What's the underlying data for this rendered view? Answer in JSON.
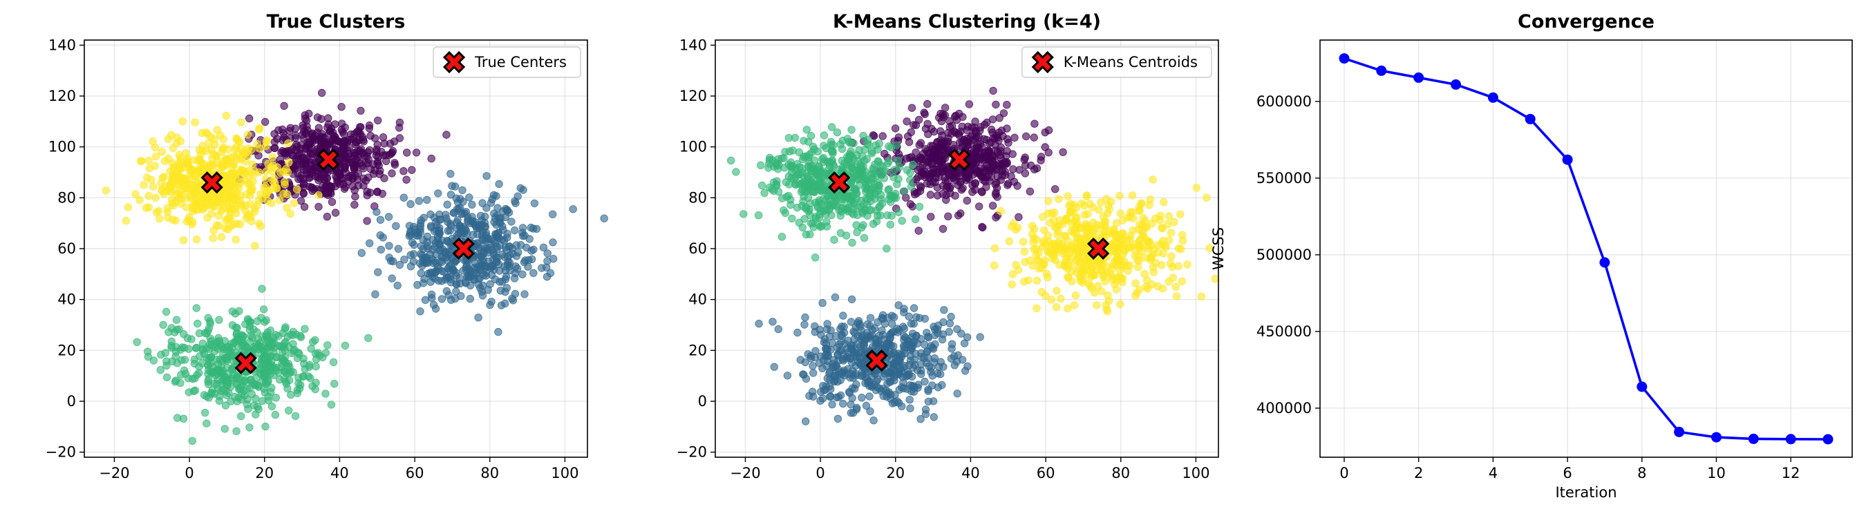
{
  "chart_data": [
    {
      "type": "scatter",
      "title": "True Clusters",
      "xlabel": "",
      "ylabel": "",
      "xlim": [
        -28,
        106
      ],
      "ylim": [
        -22,
        142
      ],
      "xticks": [
        "−20",
        "0",
        "20",
        "40",
        "60",
        "80",
        "100"
      ],
      "yticks": [
        "−20",
        "0",
        "20",
        "40",
        "60",
        "80",
        "100",
        "120",
        "140"
      ],
      "grid": true,
      "legend": {
        "placement": "top-right",
        "entries": [
          "True Centers"
        ]
      },
      "clusters": [
        {
          "center": [
            37,
            95
          ],
          "sd": [
            9,
            9
          ],
          "color": "#440154"
        },
        {
          "center": [
            73,
            60
          ],
          "sd": [
            10,
            10
          ],
          "color": "#31688e"
        },
        {
          "center": [
            15,
            15
          ],
          "sd": [
            10,
            9
          ],
          "color": "#35b779"
        },
        {
          "center": [
            6,
            86
          ],
          "sd": [
            9,
            9
          ],
          "color": "#fde725"
        }
      ],
      "centers_marker_color": "#ee1111"
    },
    {
      "type": "scatter",
      "title": "K-Means Clustering (k=4)",
      "xlabel": "",
      "ylabel": "",
      "xlim": [
        -28,
        106
      ],
      "ylim": [
        -22,
        142
      ],
      "xticks": [
        "−20",
        "0",
        "20",
        "40",
        "60",
        "80",
        "100"
      ],
      "yticks": [
        "−20",
        "0",
        "20",
        "40",
        "60",
        "80",
        "100",
        "120",
        "140"
      ],
      "grid": true,
      "legend": {
        "placement": "top-right",
        "entries": [
          "K-Means Centroids"
        ]
      },
      "clusters": [
        {
          "center": [
            37,
            95
          ],
          "sd": [
            9,
            9
          ],
          "color": "#440154"
        },
        {
          "center": [
            74,
            60
          ],
          "sd": [
            10,
            10
          ],
          "color": "#fde725"
        },
        {
          "center": [
            15,
            16
          ],
          "sd": [
            10,
            9
          ],
          "color": "#31688e"
        },
        {
          "center": [
            5,
            86
          ],
          "sd": [
            9,
            9
          ],
          "color": "#35b779"
        }
      ],
      "centers_marker_color": "#ee1111"
    },
    {
      "type": "line",
      "title": "Convergence",
      "xlabel": "Iteration",
      "ylabel": "WCSS",
      "xlim": [
        -0.65,
        13.65
      ],
      "ylim": [
        368000,
        640000
      ],
      "xticks": [
        "0",
        "2",
        "4",
        "6",
        "8",
        "10",
        "12"
      ],
      "yticks": [
        "400000",
        "450000",
        "500000",
        "550000",
        "600000"
      ],
      "grid": true,
      "series": [
        {
          "color": "#0000ff",
          "x": [
            0,
            1,
            2,
            3,
            4,
            5,
            6,
            7,
            8,
            9,
            10,
            11,
            12,
            13
          ],
          "y": [
            628000,
            620000,
            615500,
            611000,
            602500,
            588500,
            562000,
            495000,
            414000,
            384500,
            381000,
            380000,
            379800,
            379700
          ]
        }
      ]
    }
  ]
}
